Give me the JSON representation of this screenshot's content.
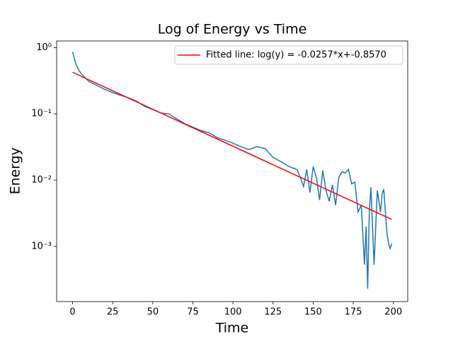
{
  "chart_data": {
    "type": "line",
    "title": "Log of Energy vs Time",
    "x_label": "Time",
    "y_label": "Energy",
    "yscale": "log",
    "xlim": [
      -9.95,
      208.95
    ],
    "ylim": [
      0.000147,
      1.26
    ],
    "xticks": [
      0,
      25,
      50,
      75,
      100,
      125,
      150,
      175,
      200
    ],
    "yticks": [
      {
        "value": 1,
        "label": "10⁰"
      },
      {
        "value": 0.1,
        "label": "10⁻¹"
      },
      {
        "value": 0.01,
        "label": "10⁻²"
      },
      {
        "value": 0.001,
        "label": "10⁻³"
      }
    ],
    "legend": "upper right",
    "series": [
      {
        "color": "#1f77b4",
        "x": [
          0,
          2,
          4,
          6,
          8,
          10,
          15,
          20,
          25,
          30,
          35,
          40,
          45,
          50,
          55,
          60,
          65,
          70,
          75,
          80,
          85,
          90,
          95,
          100,
          105,
          110,
          115,
          120,
          125,
          130,
          135,
          140,
          142,
          144,
          146,
          148,
          150,
          152,
          154,
          156,
          158,
          160,
          162,
          164,
          166,
          168,
          170,
          172,
          174,
          176,
          178,
          180,
          182,
          183,
          184,
          185,
          186,
          188,
          190,
          192,
          193,
          194,
          196,
          197,
          198,
          199
        ],
        "values": [
          0.86,
          0.57,
          0.45,
          0.39,
          0.35,
          0.31,
          0.27,
          0.235,
          0.21,
          0.19,
          0.175,
          0.155,
          0.13,
          0.116,
          0.103,
          0.1,
          0.084,
          0.071,
          0.063,
          0.056,
          0.052,
          0.044,
          0.04,
          0.036,
          0.032,
          0.029,
          0.032,
          0.03,
          0.022,
          0.019,
          0.016,
          0.0145,
          0.011,
          0.008,
          0.0145,
          0.0065,
          0.016,
          0.011,
          0.005,
          0.014,
          0.007,
          0.0048,
          0.0085,
          0.0042,
          0.011,
          0.0134,
          0.0128,
          0.0145,
          0.0088,
          0.0093,
          0.0033,
          0.0042,
          0.00053,
          0.002,
          0.00023,
          0.0033,
          0.0078,
          0.00053,
          0.007,
          0.0033,
          0.0062,
          0.0073,
          0.0016,
          0.0011,
          0.00093,
          0.0011
        ]
      },
      {
        "name": "Fitted line: log(y) = -0.0257*x+-0.8570",
        "color": "#ff0000",
        "x": [
          0,
          199
        ],
        "values": [
          0.424,
          0.00255
        ]
      }
    ]
  }
}
